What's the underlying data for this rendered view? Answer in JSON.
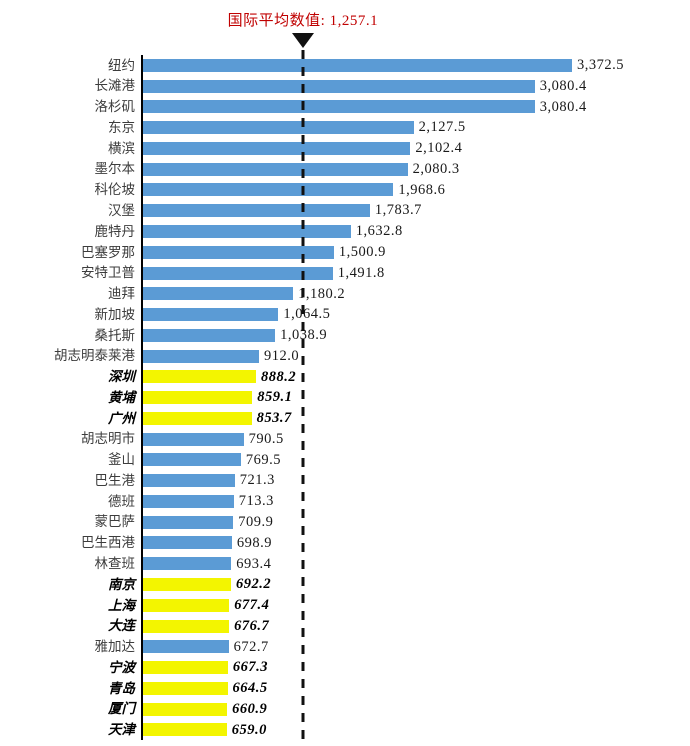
{
  "colors": {
    "bar_default": "#5B9BD5",
    "bar_highlight": "#F3F500",
    "title_red": "#C00000",
    "axis_black": "#000000"
  },
  "chart_data": {
    "type": "bar",
    "orientation": "horizontal",
    "grid": "off",
    "legend": "none",
    "xlim": [
      0,
      3500
    ],
    "average_line": {
      "value": 1257.1,
      "display": "国际平均数值: 1,257.1",
      "marker": "down-triangle",
      "line_style": "dashed-vertical"
    },
    "highlight_style": "yellow bars with bold italic labels",
    "rows": [
      {
        "category": "纽约",
        "value": 3372.5,
        "display": "3,372.5",
        "highlight": false
      },
      {
        "category": "长滩港",
        "value": 3080.4,
        "display": "3,080.4",
        "highlight": false
      },
      {
        "category": "洛杉矶",
        "value": 3080.4,
        "display": "3,080.4",
        "highlight": false
      },
      {
        "category": "东京",
        "value": 2127.5,
        "display": "2,127.5",
        "highlight": false
      },
      {
        "category": "横滨",
        "value": 2102.4,
        "display": "2,102.4",
        "highlight": false
      },
      {
        "category": "墨尔本",
        "value": 2080.3,
        "display": "2,080.3",
        "highlight": false
      },
      {
        "category": "科伦坡",
        "value": 1968.6,
        "display": "1,968.6",
        "highlight": false
      },
      {
        "category": "汉堡",
        "value": 1783.7,
        "display": "1,783.7",
        "highlight": false
      },
      {
        "category": "鹿特丹",
        "value": 1632.8,
        "display": "1,632.8",
        "highlight": false
      },
      {
        "category": "巴塞罗那",
        "value": 1500.9,
        "display": "1,500.9",
        "highlight": false
      },
      {
        "category": "安特卫普",
        "value": 1491.8,
        "display": "1,491.8",
        "highlight": false
      },
      {
        "category": "迪拜",
        "value": 1180.2,
        "display": "1,180.2",
        "highlight": false
      },
      {
        "category": "新加坡",
        "value": 1064.5,
        "display": "1,064.5",
        "highlight": false
      },
      {
        "category": "桑托斯",
        "value": 1038.9,
        "display": "1,038.9",
        "highlight": false
      },
      {
        "category": "胡志明泰莱港",
        "value": 912.0,
        "display": "912.0",
        "highlight": false
      },
      {
        "category": "深圳",
        "value": 888.2,
        "display": "888.2",
        "highlight": true
      },
      {
        "category": "黄埔",
        "value": 859.1,
        "display": "859.1",
        "highlight": true
      },
      {
        "category": "广州",
        "value": 853.7,
        "display": "853.7",
        "highlight": true
      },
      {
        "category": "胡志明市",
        "value": 790.5,
        "display": "790.5",
        "highlight": false
      },
      {
        "category": "釜山",
        "value": 769.5,
        "display": "769.5",
        "highlight": false
      },
      {
        "category": "巴生港",
        "value": 721.3,
        "display": "721.3",
        "highlight": false
      },
      {
        "category": "德班",
        "value": 713.3,
        "display": "713.3",
        "highlight": false
      },
      {
        "category": "蒙巴萨",
        "value": 709.9,
        "display": "709.9",
        "highlight": false
      },
      {
        "category": "巴生西港",
        "value": 698.9,
        "display": "698.9",
        "highlight": false
      },
      {
        "category": "林查班",
        "value": 693.4,
        "display": "693.4",
        "highlight": false
      },
      {
        "category": "南京",
        "value": 692.2,
        "display": "692.2",
        "highlight": true
      },
      {
        "category": "上海",
        "value": 677.4,
        "display": "677.4",
        "highlight": true
      },
      {
        "category": "大连",
        "value": 676.7,
        "display": "676.7",
        "highlight": true
      },
      {
        "category": "雅加达",
        "value": 672.7,
        "display": "672.7",
        "highlight": false
      },
      {
        "category": "宁波",
        "value": 667.3,
        "display": "667.3",
        "highlight": true
      },
      {
        "category": "青岛",
        "value": 664.5,
        "display": "664.5",
        "highlight": true
      },
      {
        "category": "厦门",
        "value": 660.9,
        "display": "660.9",
        "highlight": true
      },
      {
        "category": "天津",
        "value": 659.0,
        "display": "659.0",
        "highlight": true
      }
    ]
  }
}
